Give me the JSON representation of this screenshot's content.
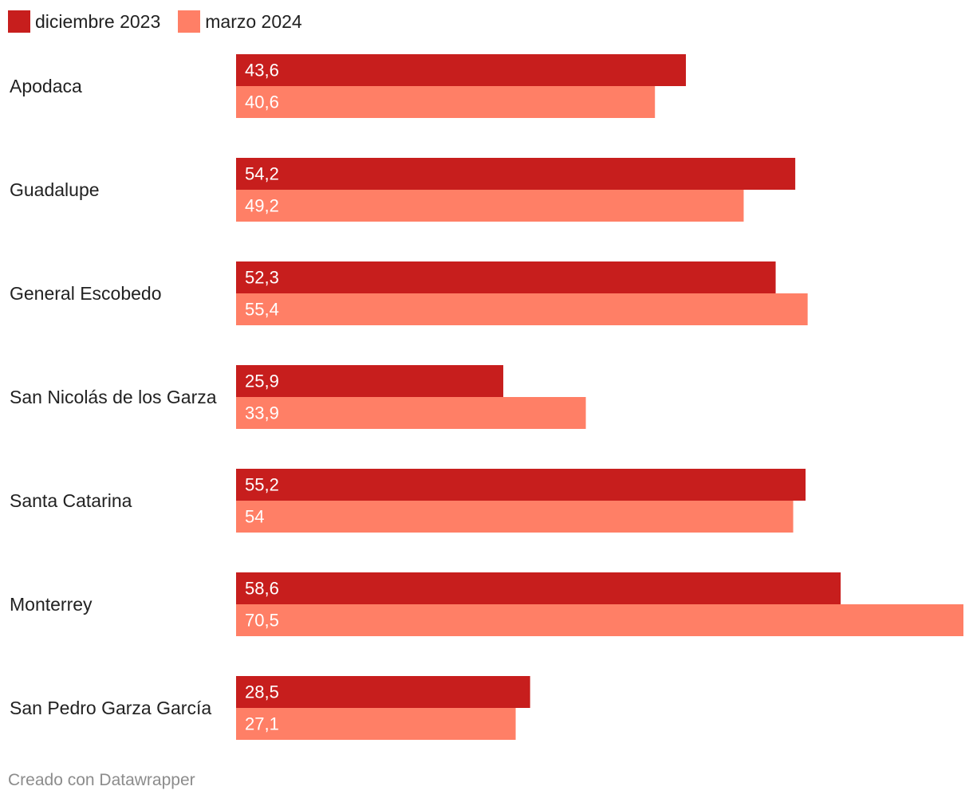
{
  "chart_data": {
    "type": "bar",
    "orientation": "horizontal",
    "categories": [
      "Apodaca",
      "Guadalupe",
      "General Escobedo",
      "San Nicolás de los Garza",
      "Santa Catarina",
      "Monterrey",
      "San Pedro Garza García"
    ],
    "series": [
      {
        "name": "diciembre 2023",
        "color": "#c71e1d",
        "values": [
          43.6,
          54.2,
          52.3,
          25.9,
          55.2,
          58.6,
          28.5
        ],
        "labels": [
          "43,6",
          "54,2",
          "52,3",
          "25,9",
          "55,2",
          "58,6",
          "28,5"
        ]
      },
      {
        "name": "marzo 2024",
        "color": "#ff7f66",
        "values": [
          40.6,
          49.2,
          55.4,
          33.9,
          54,
          70.5,
          27.1
        ],
        "labels": [
          "40,6",
          "49,2",
          "55,4",
          "33,9",
          "54",
          "70,5",
          "27,1"
        ]
      }
    ],
    "xlim": [
      0,
      70.5
    ],
    "grid": false,
    "legend": "top-left"
  },
  "footer": {
    "credit": "Creado con Datawrapper"
  }
}
